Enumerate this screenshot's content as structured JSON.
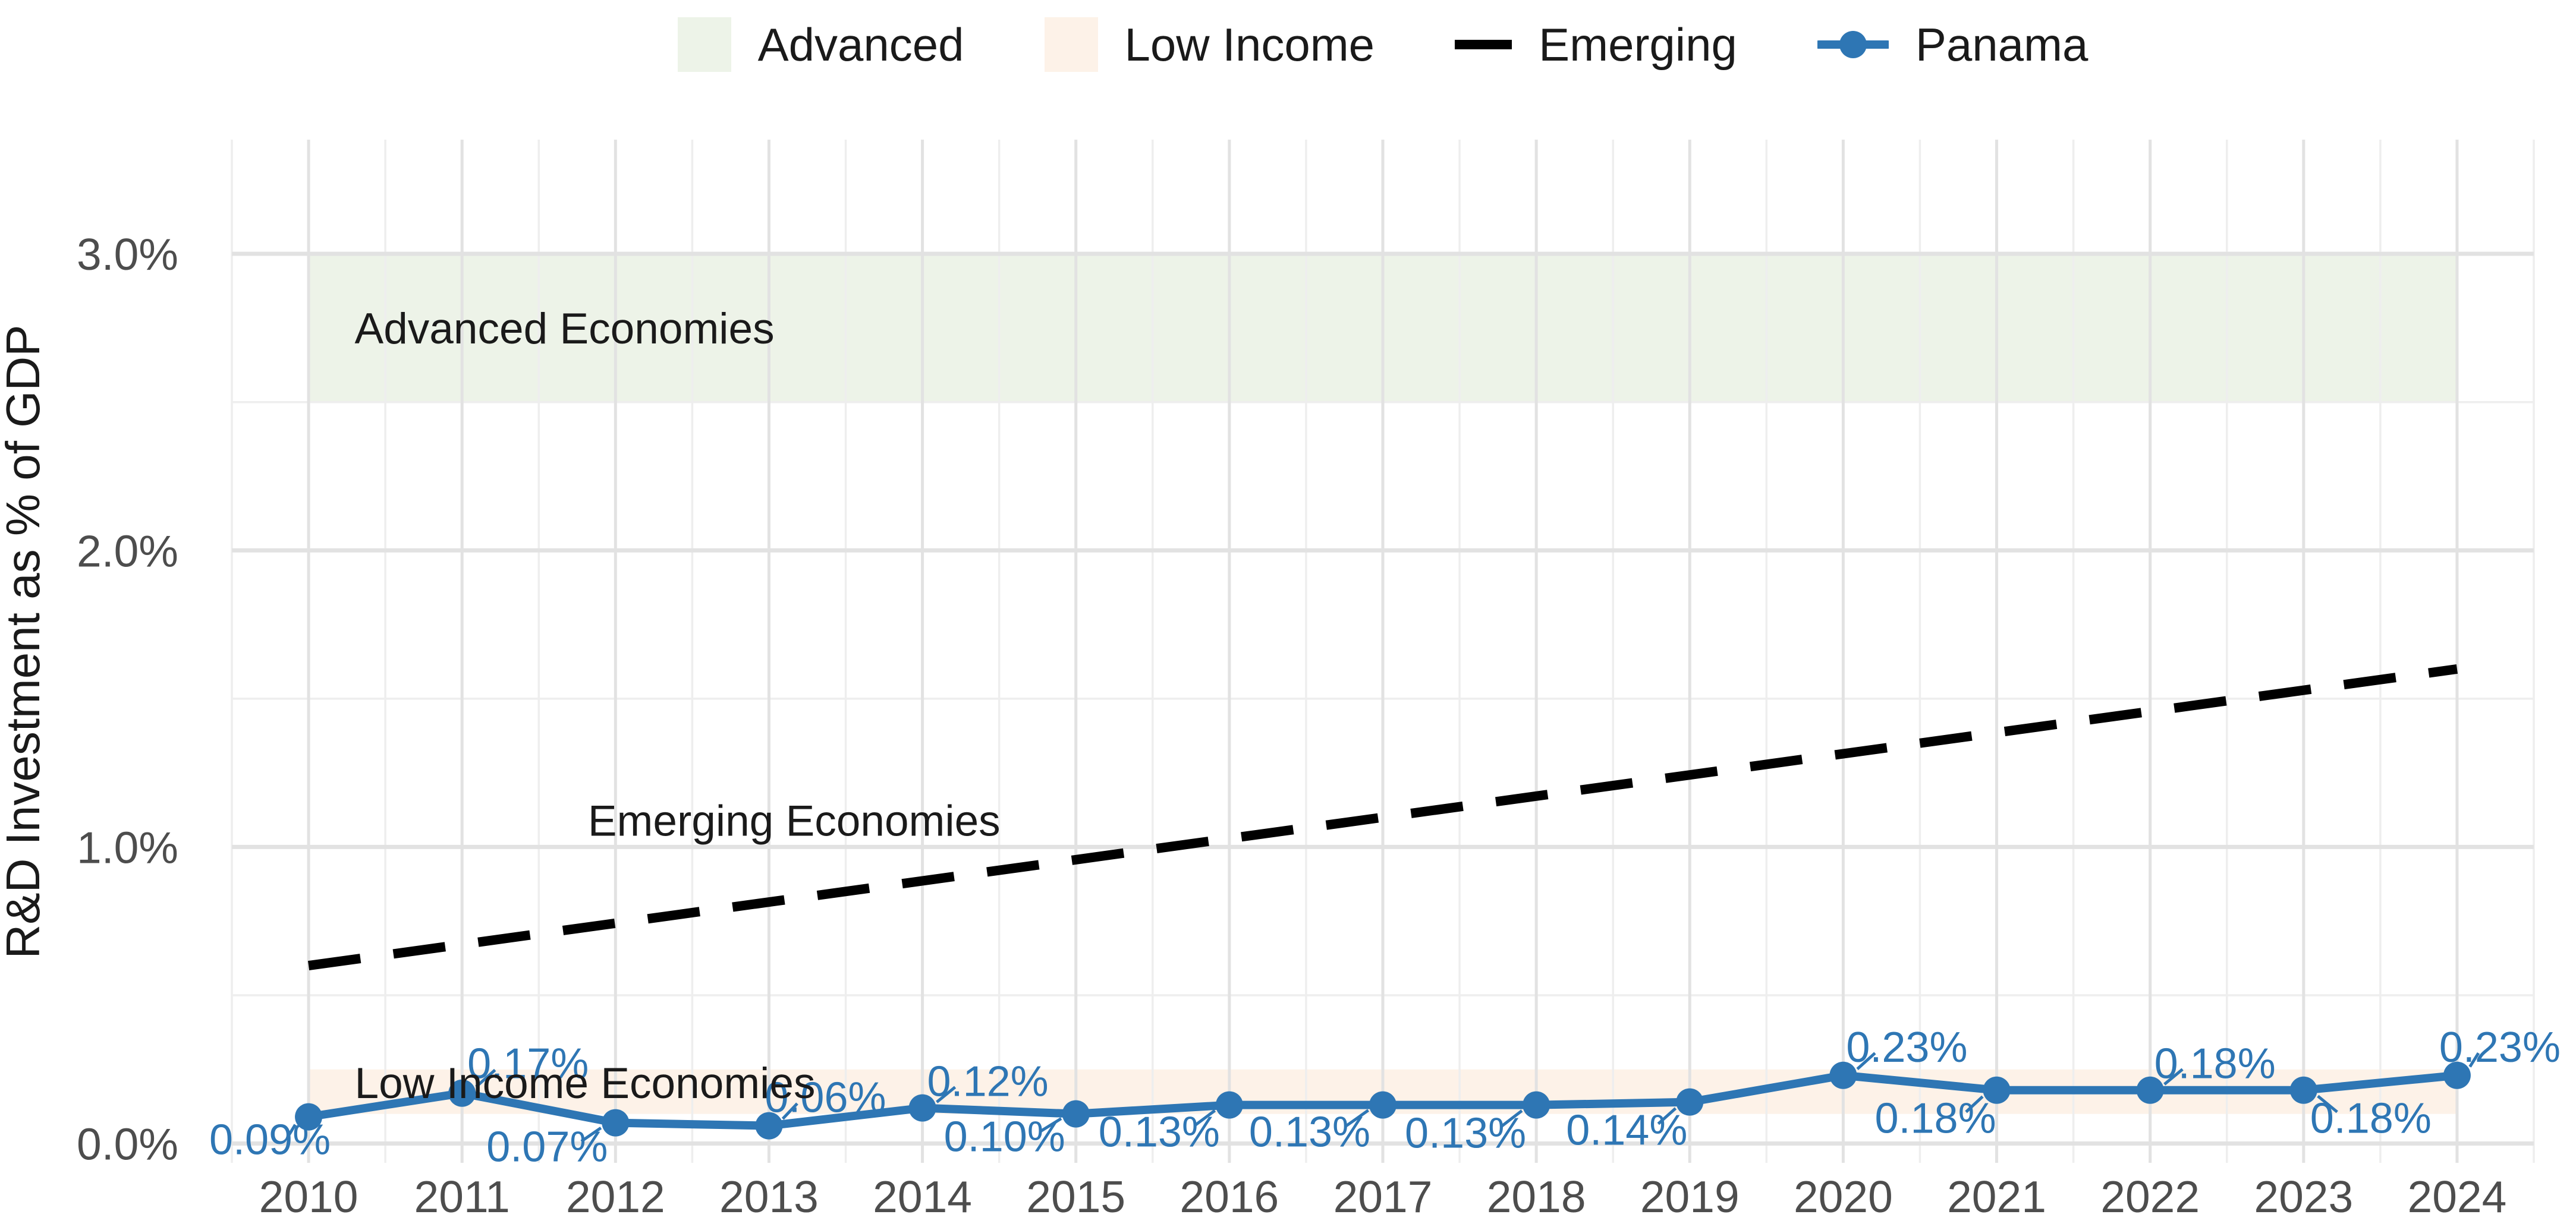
{
  "legend": {
    "items": [
      {
        "label": "Advanced",
        "key": "band",
        "color": "#edf3e8"
      },
      {
        "label": "Low Income",
        "key": "band",
        "color": "#fdf2e8"
      },
      {
        "label": "Emerging",
        "key": "dash",
        "color": "#000000"
      },
      {
        "label": "Panama",
        "key": "line-point",
        "color": "#2e76b4"
      }
    ]
  },
  "chart_data": {
    "type": "line",
    "title": "",
    "xlabel": "",
    "ylabel": "R&D Investment as % of GDP",
    "x_range": [
      2009.5,
      2024.5
    ],
    "y_range_pct": [
      -0.065,
      3.385
    ],
    "x_major_ticks": [
      {
        "value": 2010,
        "label": "2010"
      },
      {
        "value": 2011,
        "label": "2011"
      },
      {
        "value": 2012,
        "label": "2012"
      },
      {
        "value": 2013,
        "label": "2013"
      },
      {
        "value": 2014,
        "label": "2014"
      },
      {
        "value": 2015,
        "label": "2015"
      },
      {
        "value": 2016,
        "label": "2016"
      },
      {
        "value": 2017,
        "label": "2017"
      },
      {
        "value": 2018,
        "label": "2018"
      },
      {
        "value": 2019,
        "label": "2019"
      },
      {
        "value": 2020,
        "label": "2020"
      },
      {
        "value": 2021,
        "label": "2021"
      },
      {
        "value": 2022,
        "label": "2022"
      },
      {
        "value": 2023,
        "label": "2023"
      },
      {
        "value": 2024,
        "label": "2024"
      }
    ],
    "y_major_ticks": [
      {
        "value": 0,
        "label": "0.0%"
      },
      {
        "value": 1,
        "label": "1.0%"
      },
      {
        "value": 2,
        "label": "2.0%"
      },
      {
        "value": 3,
        "label": "3.0%"
      }
    ],
    "y_minor_ticks": [
      0.5,
      1.5,
      2.5
    ],
    "bands": [
      {
        "name": "advanced",
        "label": "Advanced Economies",
        "x_from": 2010,
        "x_to": 2024,
        "from_pct": 2.5,
        "to_pct": 3.0,
        "color": "#edf3e8",
        "label_x": 2010.3,
        "label_y": 2.75
      },
      {
        "name": "low-income",
        "label": "Low Income Economies",
        "x_from": 2010,
        "x_to": 2024,
        "from_pct": 0.1,
        "to_pct": 0.25,
        "color": "#fdf2e8",
        "label_x": 2010.3,
        "label_y": 0.205
      }
    ],
    "series": [
      {
        "name": "Emerging",
        "style": "dashed",
        "color": "#000000",
        "label": "Emerging Economies",
        "label_x": 2011.82,
        "label_y": 1.09,
        "points": [
          {
            "x": 2010,
            "y": 0.6
          },
          {
            "x": 2024,
            "y": 1.6
          }
        ]
      },
      {
        "name": "Panama",
        "style": "solid-points",
        "color": "#2e76b4",
        "x": [
          2010,
          2011,
          2012,
          2013,
          2014,
          2015,
          2016,
          2017,
          2018,
          2019,
          2020,
          2021,
          2022,
          2023,
          2024
        ],
        "values": [
          0.09,
          0.17,
          0.07,
          0.06,
          0.12,
          0.1,
          0.13,
          0.13,
          0.13,
          0.14,
          0.23,
          0.18,
          0.18,
          0.18,
          0.23
        ],
        "point_labels": [
          "0.09%",
          "0.17%",
          "0.07%",
          "0.06%",
          "0.12%",
          "0.10%",
          "0.13%",
          "0.13%",
          "0.13%",
          "0.14%",
          "0.23%",
          "0.18%",
          "0.18%",
          "0.18%",
          "0.23%"
        ]
      }
    ],
    "colors": {
      "axis_text": "#4d4d4d",
      "axis_title": "#1a1a1a",
      "annotation_text": "#1a1a1a",
      "grid_major": "#e2e2e2",
      "grid_minor": "#eeeeee",
      "panama_blue": "#2e76b4"
    },
    "legend_position": "top"
  }
}
